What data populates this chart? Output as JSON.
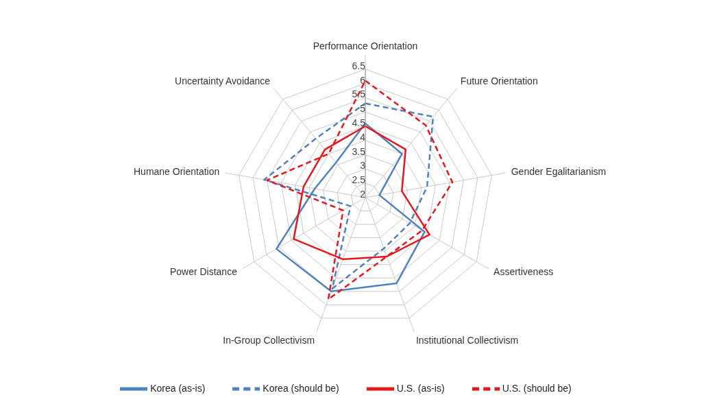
{
  "chart_data": {
    "type": "radar",
    "categories": [
      "Performance Orientation",
      "Future Orientation",
      "Gender Egalitarianism",
      "Assertiveness",
      "Institutional Collectivism",
      "In-Group Collectivism",
      "Power Distance",
      "Humane Orientation",
      "Uncertainty Avoidance"
    ],
    "series": [
      {
        "name": "Korea (should be)",
        "color": "#4f81bd",
        "line_style": "dashed",
        "values": [
          5.3,
          5.7,
          4.2,
          3.8,
          3.9,
          5.4,
          2.6,
          5.6,
          4.7
        ]
      },
      {
        "name": "Korea (as-is)",
        "color": "#4f81bd",
        "line_style": "solid",
        "values": [
          4.6,
          4.0,
          2.5,
          4.4,
          5.2,
          5.5,
          5.6,
          3.8,
          3.6
        ]
      },
      {
        "name": "U.S. (should be)",
        "color": "#e8151b",
        "line_style": "dashed",
        "values": [
          6.1,
          5.3,
          5.1,
          4.3,
          4.2,
          5.8,
          2.9,
          5.5,
          4.0
        ]
      },
      {
        "name": "U.S. (as-is)",
        "color": "#e8151b",
        "line_style": "solid",
        "values": [
          4.5,
          4.2,
          3.3,
          4.6,
          4.2,
          4.3,
          4.9,
          4.2,
          4.2
        ]
      }
    ],
    "ylim": [
      2,
      6.5
    ],
    "yticks": [
      2,
      2.5,
      3,
      3.5,
      4,
      4.5,
      5,
      5.5,
      6,
      6.5
    ],
    "grid": true,
    "legend": "bottom",
    "marker": "none"
  }
}
